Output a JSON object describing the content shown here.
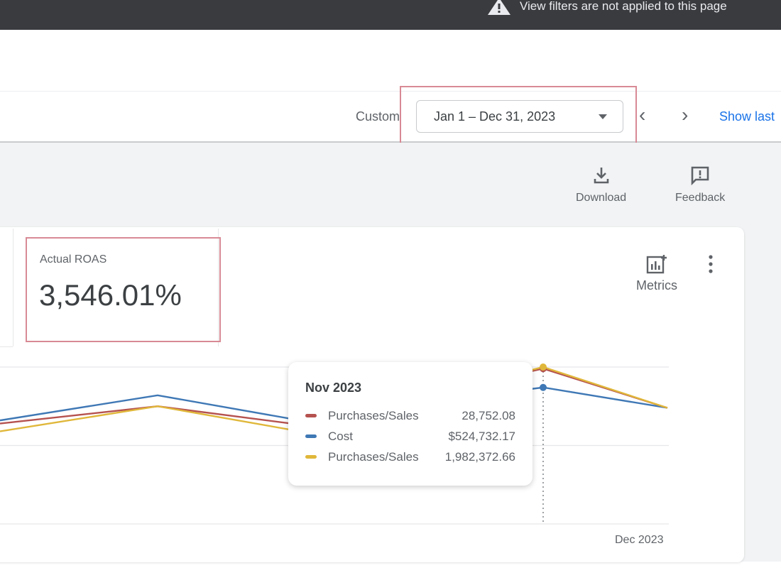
{
  "banner": {
    "icon": "warning-icon",
    "text": "View filters are not applied to this page"
  },
  "toolbar": {
    "range_label": "Custom",
    "date_range": "Jan 1 – Dec 31, 2023",
    "prev_icon": "chevron-left-icon",
    "next_icon": "chevron-right-icon",
    "show_last": "Show last"
  },
  "actions": {
    "download": "Download",
    "feedback": "Feedback"
  },
  "scorecard": {
    "label": "Actual ROAS",
    "value": "3,546.01%"
  },
  "card_actions": {
    "metrics": "Metrics"
  },
  "colors": {
    "red": "#b5524f",
    "blue": "#3f78b5",
    "yellow": "#e0b73a",
    "accent": "#1a73e8",
    "highlight": "#d88a95"
  },
  "tooltip": {
    "title": "Nov 2023",
    "rows": [
      {
        "name": "Purchases/Sales",
        "value": "28,752.08"
      },
      {
        "name": "Cost",
        "value": "$524,732.17"
      },
      {
        "name": "Purchases/Sales",
        "value": "1,982,372.66"
      }
    ]
  },
  "chart_data": {
    "type": "line",
    "note": "relative index scale (0-100), y-axis values not shown",
    "x": [
      "",
      "",
      "",
      "Nov 2023",
      "Dec 2023"
    ],
    "x_tick_labels": [
      "Dec 2023"
    ],
    "ylim": [
      0,
      100
    ],
    "grid": true,
    "series": [
      {
        "name": "Purchases/Sales",
        "color": "#b5524f",
        "values": [
          64,
          75,
          64,
          99,
          74
        ]
      },
      {
        "name": "Cost",
        "color": "#3f78b5",
        "values": [
          66,
          82,
          67,
          87,
          74
        ]
      },
      {
        "name": "Purchases/Sales",
        "color": "#e0b73a",
        "values": [
          59,
          75,
          60,
          100,
          74
        ]
      }
    ],
    "highlight_index": 3
  }
}
